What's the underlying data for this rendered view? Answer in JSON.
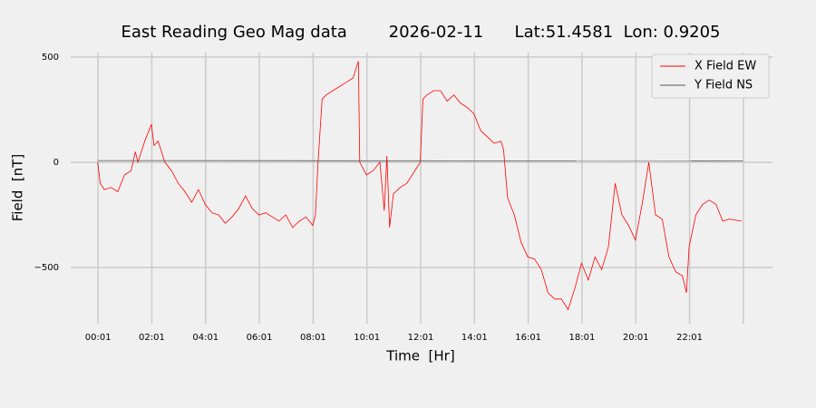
{
  "chart_data": {
    "type": "line",
    "title": "East Reading Geo Mag data        2026-02-11      Lat:51.4581  Lon: 0.9205",
    "xlabel": "Time  [Hr]",
    "ylabel": "Field  [nT]",
    "xlim": [
      -1.0,
      25.1
    ],
    "ylim": [
      -767,
      521
    ],
    "xticks": [
      {
        "value": 0.0167,
        "label": "00:01"
      },
      {
        "value": 2.0167,
        "label": "02:01"
      },
      {
        "value": 4.0167,
        "label": "04:01"
      },
      {
        "value": 6.0167,
        "label": "06:01"
      },
      {
        "value": 8.0167,
        "label": "08:01"
      },
      {
        "value": 10.0167,
        "label": "10:01"
      },
      {
        "value": 12.0167,
        "label": "12:01"
      },
      {
        "value": 14.0167,
        "label": "14:01"
      },
      {
        "value": 16.0167,
        "label": "16:01"
      },
      {
        "value": 18.0167,
        "label": "18:01"
      },
      {
        "value": 20.0167,
        "label": "20:01"
      },
      {
        "value": 22.0167,
        "label": "22:01"
      },
      {
        "value": 24.0167,
        "label": null
      }
    ],
    "yticks": [
      {
        "value": -500,
        "label": "−500"
      },
      0,
      500
    ],
    "grid": true,
    "legend": "upper right",
    "series": [
      {
        "name": "X Field EW",
        "color": "#ff0000",
        "x": [
          0,
          0.1,
          0.25,
          0.5,
          0.75,
          1.0,
          1.25,
          1.4,
          1.5,
          1.75,
          2.0,
          2.1,
          2.25,
          2.5,
          2.75,
          3.0,
          3.25,
          3.5,
          3.75,
          4.0,
          4.25,
          4.5,
          4.75,
          5.0,
          5.25,
          5.5,
          5.75,
          6.0,
          6.25,
          6.5,
          6.75,
          7.0,
          7.25,
          7.5,
          7.75,
          8.0,
          8.1,
          8.2,
          8.35,
          8.5,
          8.75,
          9.0,
          9.25,
          9.5,
          9.7,
          9.75,
          10.0,
          10.25,
          10.5,
          10.66,
          10.76,
          10.86,
          11.0,
          11.25,
          11.5,
          11.75,
          12.0,
          12.1,
          12.25,
          12.5,
          12.75,
          13.0,
          13.25,
          13.5,
          13.75,
          14.0,
          14.25,
          14.5,
          14.75,
          15.0,
          15.1,
          15.25,
          15.5,
          15.75,
          16.0,
          16.25,
          16.5,
          16.75,
          17.0,
          17.25,
          17.5,
          17.75,
          18.0,
          18.25,
          18.5,
          18.75,
          19.0,
          19.25,
          19.5,
          19.75,
          20.0,
          20.25,
          20.5,
          20.75,
          21.0,
          21.25,
          21.5,
          21.75,
          21.9,
          22.0,
          22.25,
          22.5,
          22.75,
          23.0,
          23.25,
          23.5,
          23.95
        ],
        "values": [
          0,
          -100,
          -130,
          -120,
          -140,
          -60,
          -40,
          50,
          0,
          100,
          180,
          80,
          100,
          0,
          -40,
          -100,
          -140,
          -190,
          -130,
          -200,
          -240,
          -250,
          -290,
          -260,
          -220,
          -160,
          -220,
          -250,
          -240,
          -260,
          -280,
          -250,
          -310,
          -280,
          -260,
          -300,
          -250,
          0,
          300,
          320,
          340,
          360,
          380,
          400,
          480,
          0,
          -60,
          -40,
          0,
          -230,
          30,
          -310,
          -150,
          -120,
          -100,
          -50,
          0,
          300,
          320,
          340,
          340,
          290,
          320,
          280,
          260,
          230,
          150,
          120,
          90,
          100,
          60,
          -170,
          -250,
          -380,
          -450,
          -460,
          -510,
          -620,
          -650,
          -650,
          -700,
          -600,
          -480,
          -560,
          -450,
          -510,
          -400,
          -100,
          -250,
          -300,
          -370,
          -200,
          0,
          -250,
          -270,
          -450,
          -520,
          -540,
          -620,
          -400,
          -250,
          -200,
          -180,
          -200,
          -280,
          -270,
          -280
        ]
      },
      {
        "name": "Y Field NS",
        "color": "#555555",
        "x": [
          0,
          24
        ],
        "values": [
          8,
          6
        ]
      }
    ]
  }
}
